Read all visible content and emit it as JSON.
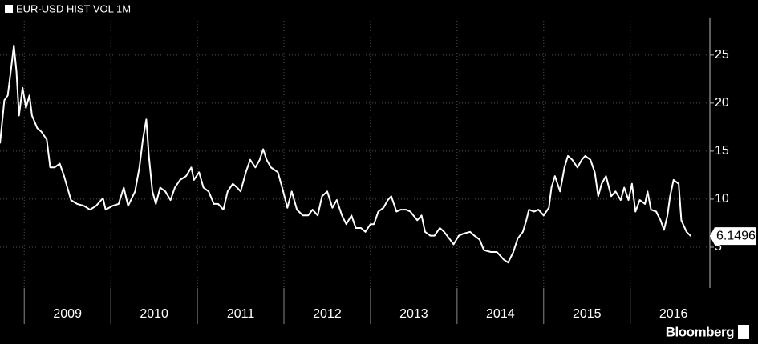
{
  "chart_data": {
    "type": "line",
    "title": "EUR-USD HIST VOL 1M",
    "x": [
      2008.72,
      2008.77,
      2008.81,
      2008.85,
      2008.88,
      2008.91,
      2008.94,
      2008.98,
      2009.02,
      2009.06,
      2009.09,
      2009.15,
      2009.2,
      2009.26,
      2009.3,
      2009.35,
      2009.41,
      2009.46,
      2009.54,
      2009.61,
      2009.69,
      2009.76,
      2009.83,
      2009.91,
      2009.94,
      2010.02,
      2010.09,
      2010.15,
      2010.2,
      2010.28,
      2010.33,
      2010.37,
      2010.41,
      2010.44,
      2010.48,
      2010.52,
      2010.57,
      2010.63,
      2010.69,
      2010.74,
      2010.8,
      2010.87,
      2010.93,
      2010.96,
      2011.02,
      2011.07,
      2011.13,
      2011.19,
      2011.24,
      2011.3,
      2011.35,
      2011.41,
      2011.46,
      2011.5,
      2011.56,
      2011.61,
      2011.67,
      2011.72,
      2011.76,
      2011.8,
      2011.85,
      2011.93,
      2011.98,
      2012.04,
      2012.09,
      2012.15,
      2012.22,
      2012.28,
      2012.33,
      2012.39,
      2012.44,
      2012.5,
      2012.56,
      2012.61,
      2012.67,
      2012.72,
      2012.78,
      2012.83,
      2012.89,
      2012.94,
      2013.0,
      2013.04,
      2013.09,
      2013.15,
      2013.2,
      2013.24,
      2013.3,
      2013.35,
      2013.41,
      2013.46,
      2013.54,
      2013.59,
      2013.63,
      2013.69,
      2013.74,
      2013.8,
      2013.85,
      2013.91,
      2013.96,
      2014.02,
      2014.07,
      2014.15,
      2014.2,
      2014.26,
      2014.31,
      2014.39,
      2014.46,
      2014.54,
      2014.59,
      2014.65,
      2014.7,
      2014.76,
      2014.8,
      2014.83,
      2014.89,
      2014.94,
      2015.0,
      2015.06,
      2015.09,
      2015.13,
      2015.19,
      2015.24,
      2015.28,
      2015.33,
      2015.39,
      2015.44,
      2015.48,
      2015.54,
      2015.59,
      2015.63,
      2015.67,
      2015.72,
      2015.78,
      2015.83,
      2015.89,
      2015.93,
      2015.98,
      2016.02,
      2016.06,
      2016.11,
      2016.17,
      2016.2,
      2016.24,
      2016.3,
      2016.35,
      2016.39,
      2016.43,
      2016.46,
      2016.5,
      2016.56,
      2016.59,
      2016.65,
      2016.7
    ],
    "series": [
      {
        "name": "EUR-USD HIST VOL 1M",
        "color": "#ffffff",
        "values": [
          15.8,
          20.3,
          20.8,
          23.7,
          26.0,
          23.3,
          18.7,
          21.6,
          19.5,
          20.8,
          18.7,
          17.4,
          17.0,
          16.2,
          13.3,
          13.3,
          13.7,
          12.4,
          9.9,
          9.5,
          9.3,
          8.9,
          9.3,
          10.1,
          8.9,
          9.3,
          9.5,
          11.2,
          9.3,
          10.8,
          13.3,
          16.2,
          18.3,
          14.5,
          10.8,
          9.5,
          11.2,
          10.8,
          9.9,
          11.2,
          12.0,
          12.4,
          13.3,
          12.0,
          12.8,
          11.2,
          10.8,
          9.5,
          9.5,
          8.9,
          10.8,
          11.6,
          11.2,
          10.8,
          12.8,
          14.1,
          13.3,
          14.1,
          15.2,
          14.1,
          13.3,
          12.8,
          11.2,
          9.1,
          10.8,
          8.9,
          8.3,
          8.3,
          8.9,
          8.3,
          10.3,
          10.8,
          9.1,
          9.9,
          8.3,
          7.4,
          8.3,
          7.0,
          7.0,
          6.6,
          7.4,
          7.4,
          8.7,
          9.1,
          9.9,
          10.3,
          8.7,
          8.9,
          8.9,
          8.7,
          7.8,
          8.3,
          6.6,
          6.2,
          6.2,
          7.0,
          6.6,
          5.9,
          5.3,
          6.2,
          6.4,
          6.6,
          6.2,
          5.8,
          4.7,
          4.5,
          4.5,
          3.7,
          3.4,
          4.5,
          5.9,
          6.6,
          7.8,
          8.9,
          8.7,
          8.9,
          8.3,
          9.1,
          11.2,
          12.4,
          10.8,
          13.3,
          14.5,
          14.1,
          13.3,
          14.1,
          14.5,
          14.1,
          12.8,
          10.3,
          11.6,
          12.4,
          10.3,
          10.8,
          9.9,
          11.2,
          9.9,
          11.6,
          8.7,
          9.9,
          9.5,
          10.8,
          8.9,
          8.7,
          7.8,
          6.8,
          8.3,
          10.3,
          12.0,
          11.6,
          7.8,
          6.6,
          6.1496
        ]
      }
    ],
    "last_value": 6.1496,
    "xlim": [
      2008.72,
      2016.92
    ],
    "xticks": [
      2009,
      2010,
      2011,
      2012,
      2013,
      2014,
      2015,
      2016
    ],
    "ylim": [
      0.75,
      28.9
    ],
    "yticks": [
      5,
      10,
      15,
      20,
      25
    ],
    "grid": true,
    "source": "Bloomberg"
  }
}
